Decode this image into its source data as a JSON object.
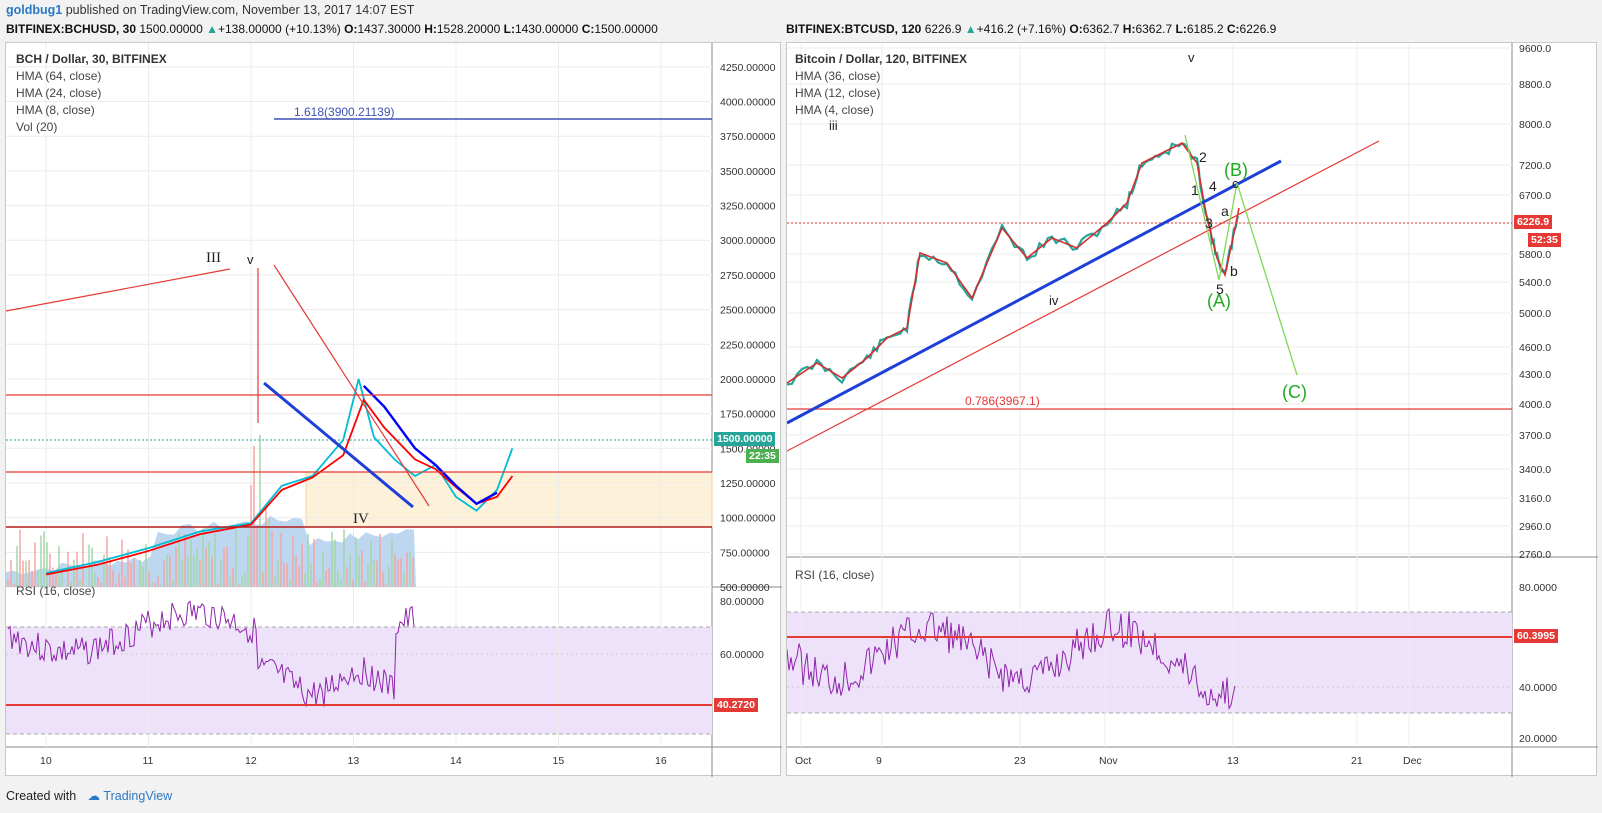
{
  "topline": {
    "author": "goldbug1",
    "text": "published on TradingView.com, November 13, 2017 14:07 EST"
  },
  "left": {
    "symbol": "BITFINEX:BCHUSD, 30",
    "last": "1500.00000",
    "change": "+138.00000 (+10.13%)",
    "o_label": "O:",
    "o": "1437.30000",
    "h_label": "H:",
    "h": "1528.20000",
    "l_label": "L:",
    "l": "1430.00000",
    "c_label": "C:",
    "c": "1500.00000",
    "legend": [
      "BCH / Dollar, 30, BITFINEX",
      "HMA (64, close)",
      "HMA (24, close)",
      "HMA (8, close)",
      "Vol (20)"
    ],
    "rsi_label": "RSI (16, close)",
    "price_tag": "1500.00000",
    "time_tag": "22:35",
    "rsi_tag": "40.2720",
    "annotations": {
      "fib": "1.618(3900.21139)",
      "wave_III": "III",
      "wave_v": "v",
      "wave_IV": "IV"
    }
  },
  "right": {
    "symbol": "BITFINEX:BTCUSD, 120",
    "last": "6226.9",
    "change": "+416.2 (+7.16%)",
    "o_label": "O:",
    "o": "6362.7",
    "h_label": "H:",
    "h": "6362.7",
    "l_label": "L:",
    "l": "6185.2",
    "c_label": "C:",
    "c": "6226.9",
    "legend": [
      "Bitcoin / Dollar, 120, BITFINEX",
      "HMA (36, close)",
      "HMA (12, close)",
      "HMA (4, close)"
    ],
    "rsi_label": "RSI (16, close)",
    "price_tag": "6226.9",
    "time_tag": "52:35",
    "rsi_tag": "60.3995",
    "annotations": {
      "fib": "0.786(3967.1)",
      "wave_iii": "iii",
      "wave_v": "v",
      "wave_iv": "iv",
      "w1": "1",
      "w2": "2",
      "w3": "3",
      "w4": "4",
      "w5": "5",
      "wa": "a",
      "wb": "b",
      "wc": "c",
      "A": "(A)",
      "B": "(B)",
      "C": "(C)"
    }
  },
  "footer": {
    "created": "Created with",
    "brand": "TradingView"
  },
  "colors": {
    "up": "#26a69a",
    "down": "#ef5350",
    "hma_blue": "#0000ff",
    "hma_red": "#ff0000",
    "hma_cyan": "#00bcd4",
    "rsi": "#8e24aa",
    "green_wave": "#22aa22"
  },
  "chart_data": [
    {
      "type": "line",
      "title": "BCH / Dollar, 30, BITFINEX",
      "x_ticks": [
        "10",
        "11",
        "12",
        "13",
        "14",
        "15",
        "16"
      ],
      "y_ticks": [
        500,
        750,
        1000,
        1250,
        1500,
        1750,
        2000,
        2250,
        2500,
        2750,
        3000,
        3250,
        3500,
        3750,
        4000,
        4250
      ],
      "ylim": [
        500,
        4500
      ],
      "horizontal_lines": [
        1850,
        1250,
        840,
        3900.21139
      ],
      "series": [
        {
          "name": "HMA (8, close)",
          "x": [
            9.0,
            9.5,
            10.0,
            10.5,
            11.0,
            11.3,
            11.6,
            11.9,
            12.05,
            12.2,
            12.4,
            12.6,
            12.8,
            13.0,
            13.2,
            13.4,
            13.55
          ],
          "values": [
            600,
            680,
            780,
            900,
            960,
            1230,
            1300,
            1560,
            2000,
            1580,
            1420,
            1300,
            1380,
            1150,
            1050,
            1200,
            1500
          ]
        },
        {
          "name": "HMA (24, close)",
          "x": [
            9.0,
            9.5,
            10.0,
            10.5,
            11.0,
            11.3,
            11.6,
            11.9,
            12.1,
            12.3,
            12.6,
            12.8,
            13.0,
            13.2,
            13.4,
            13.55
          ],
          "values": [
            590,
            660,
            760,
            880,
            950,
            1200,
            1290,
            1450,
            1850,
            1650,
            1420,
            1350,
            1220,
            1100,
            1150,
            1300
          ]
        },
        {
          "name": "HMA (64, close)",
          "x": [
            12.1,
            12.3,
            12.6,
            12.8,
            13.0,
            13.2,
            13.4
          ],
          "values": [
            1950,
            1800,
            1500,
            1380,
            1230,
            1100,
            1180
          ]
        }
      ],
      "rsi": {
        "name": "RSI (16, close)",
        "ticks": [
          60,
          80
        ],
        "last": 40.272
      }
    },
    {
      "type": "line",
      "title": "Bitcoin / Dollar, 120, BITFINEX",
      "x_ticks": [
        "Oct",
        "9",
        "23",
        "Nov",
        "13",
        "21",
        "Dec"
      ],
      "y_ticks": [
        2760,
        2960,
        3160,
        3400,
        3700,
        4000,
        4300,
        4600,
        5000,
        5400,
        5800,
        6200,
        6700,
        7200,
        8000,
        8800,
        9600
      ],
      "ylim": [
        2700,
        9700
      ],
      "horizontal_lines": [
        3967.1,
        6226.9
      ],
      "series": [
        {
          "name": "HMA (4, close)",
          "x": [
            0,
            5,
            10,
            15,
            20,
            25,
            30,
            33,
            37,
            40,
            44,
            46,
            48,
            50,
            51
          ],
          "values": [
            4200,
            4250,
            4500,
            5600,
            5500,
            6100,
            5900,
            6900,
            7600,
            7450,
            6800,
            5900,
            5800,
            6700,
            6226.9
          ]
        }
      ],
      "rsi": {
        "name": "RSI (16, close)",
        "ticks": [
          20,
          40,
          60,
          80
        ],
        "last": 60.3995
      }
    }
  ]
}
